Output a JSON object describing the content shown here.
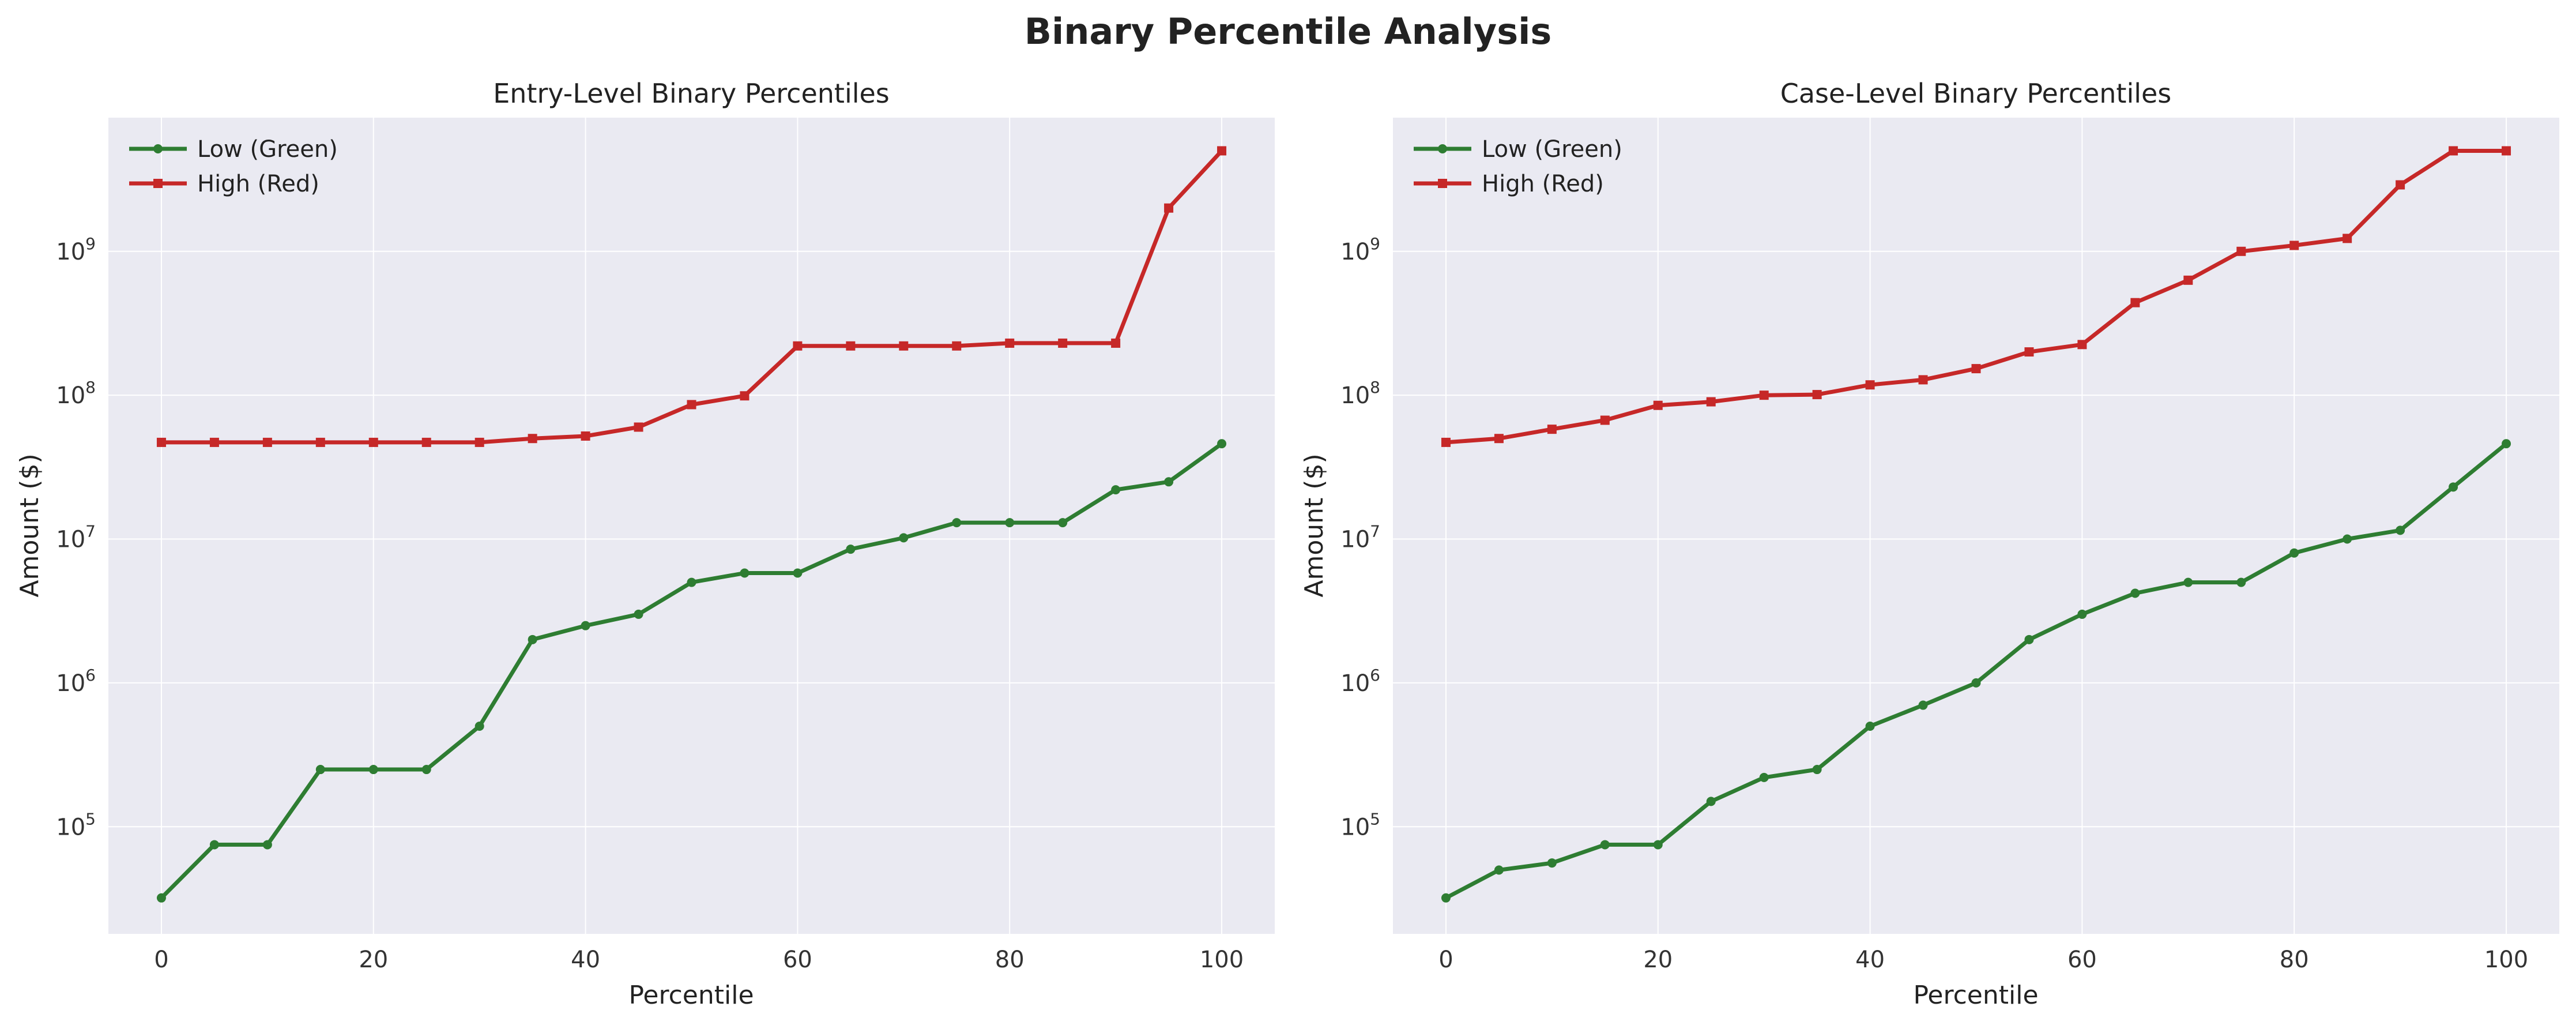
{
  "title": "Binary Percentile Analysis",
  "colors": {
    "low": "#2e7d32",
    "high": "#c62828",
    "axes_bg": "#eaeaf2",
    "grid": "#ffffff"
  },
  "chart_data": [
    {
      "type": "line",
      "title": "Entry-Level Binary Percentiles",
      "xlabel": "Percentile",
      "ylabel": "Amount ($)",
      "yscale": "log",
      "xlim": [
        -5,
        105
      ],
      "ylim": [
        18000,
        8500000000
      ],
      "xticks": [
        0,
        20,
        40,
        60,
        80,
        100
      ],
      "ytick_exponents": [
        5,
        6,
        7,
        8,
        9
      ],
      "grid": true,
      "legend": "top-left",
      "x": [
        0,
        5,
        10,
        15,
        20,
        25,
        30,
        35,
        40,
        45,
        50,
        55,
        60,
        65,
        70,
        75,
        80,
        85,
        90,
        95,
        100
      ],
      "series": [
        {
          "name": "Low (Green)",
          "marker": "circle",
          "color": "#2e7d32",
          "values": [
            32000,
            75000,
            75000,
            250000,
            250000,
            250000,
            500000,
            2000000,
            2500000,
            3000000,
            5000000,
            5800000,
            5800000,
            8500000,
            10200000,
            13000000,
            13000000,
            13000000,
            22000000,
            25000000,
            46000000
          ]
        },
        {
          "name": "High (Red)",
          "marker": "square",
          "color": "#c62828",
          "values": [
            47000000,
            47000000,
            47000000,
            47000000,
            47000000,
            47000000,
            47000000,
            50000000,
            52000000,
            60000000,
            86000000,
            99000000,
            220000000,
            220000000,
            220000000,
            220000000,
            230000000,
            230000000,
            230000000,
            2000000000,
            5000000000
          ]
        }
      ]
    },
    {
      "type": "line",
      "title": "Case-Level Binary Percentiles",
      "xlabel": "Percentile",
      "ylabel": "Amount ($)",
      "yscale": "log",
      "xlim": [
        -5,
        105
      ],
      "ylim": [
        18000,
        8500000000
      ],
      "xticks": [
        0,
        20,
        40,
        60,
        80,
        100
      ],
      "ytick_exponents": [
        5,
        6,
        7,
        8,
        9
      ],
      "grid": true,
      "legend": "top-left",
      "x": [
        0,
        5,
        10,
        15,
        20,
        25,
        30,
        35,
        40,
        45,
        50,
        55,
        60,
        65,
        70,
        75,
        80,
        85,
        90,
        95,
        100
      ],
      "series": [
        {
          "name": "Low (Green)",
          "marker": "circle",
          "color": "#2e7d32",
          "values": [
            32000,
            50000,
            56000,
            75000,
            75000,
            150000,
            220000,
            250000,
            500000,
            700000,
            1000000,
            2000000,
            3000000,
            4200000,
            5000000,
            5000000,
            8000000,
            10000000,
            11500000,
            23000000,
            46000000
          ]
        },
        {
          "name": "High (Red)",
          "marker": "square",
          "color": "#c62828",
          "values": [
            47000000,
            50000000,
            58000000,
            67000000,
            85000000,
            90000000,
            100000000,
            101000000,
            118000000,
            128000000,
            153000000,
            200000000,
            225000000,
            440000000,
            630000000,
            1000000000,
            1100000000,
            1230000000,
            2900000000,
            5000000000,
            5000000000
          ]
        }
      ]
    }
  ]
}
